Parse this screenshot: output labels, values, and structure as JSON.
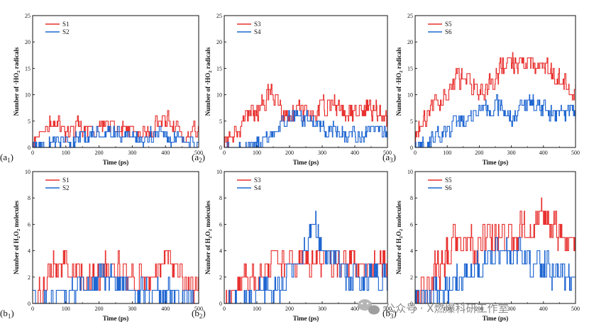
{
  "figure": {
    "watermark": "公众号 · X燃爆科研工作室"
  },
  "colors": {
    "series_a": "#e8312f",
    "series_b": "#1f66d1",
    "axis": "#111111"
  },
  "chart_data": [
    {
      "id": "a1",
      "type": "line",
      "panel_label": "(a",
      "panel_sub": "1",
      "panel_end": ")",
      "xlabel": "Time (ps)",
      "ylabel_pre": "Number of ·HO",
      "ylabel_sub": "2",
      "ylabel_post": " radicals",
      "xlim": [
        0,
        500
      ],
      "ylim": [
        0,
        25
      ],
      "xticks": [
        0,
        100,
        200,
        300,
        400,
        500
      ],
      "yticks": [
        0,
        5,
        10,
        15,
        20,
        25
      ],
      "series": [
        {
          "name": "S1",
          "color": "#e8312f",
          "seed": 11,
          "anchors": [
            [
              0,
              2
            ],
            [
              30,
              4
            ],
            [
              60,
              5
            ],
            [
              100,
              3
            ],
            [
              150,
              4
            ],
            [
              200,
              3
            ],
            [
              250,
              4
            ],
            [
              300,
              3
            ],
            [
              350,
              3
            ],
            [
              400,
              5
            ],
            [
              450,
              3
            ],
            [
              500,
              3
            ]
          ],
          "noise": 2.2,
          "ymin": 0,
          "ymax": 7
        },
        {
          "name": "S2",
          "color": "#1f66d1",
          "seed": 23,
          "anchors": [
            [
              0,
              0
            ],
            [
              50,
              1
            ],
            [
              100,
              1
            ],
            [
              150,
              2
            ],
            [
              200,
              3
            ],
            [
              250,
              3
            ],
            [
              300,
              2
            ],
            [
              350,
              2
            ],
            [
              400,
              2
            ],
            [
              450,
              1
            ],
            [
              500,
              2
            ]
          ],
          "noise": 2.0,
          "ymin": 0,
          "ymax": 6
        }
      ]
    },
    {
      "id": "a2",
      "type": "line",
      "panel_label": "(a",
      "panel_sub": "2",
      "panel_end": ")",
      "xlabel": "Time (ps)",
      "ylabel_pre": "Number of ·HO",
      "ylabel_sub": "2",
      "ylabel_post": " radicals",
      "xlim": [
        0,
        500
      ],
      "ylim": [
        0,
        25
      ],
      "xticks": [
        0,
        100,
        200,
        300,
        400,
        500
      ],
      "yticks": [
        0,
        5,
        10,
        15,
        20,
        25
      ],
      "series": [
        {
          "name": "S3",
          "color": "#e8312f",
          "seed": 31,
          "anchors": [
            [
              0,
              1
            ],
            [
              40,
              3
            ],
            [
              80,
              6
            ],
            [
              140,
              10
            ],
            [
              180,
              6
            ],
            [
              230,
              7
            ],
            [
              260,
              5
            ],
            [
              320,
              9
            ],
            [
              370,
              6
            ],
            [
              440,
              8
            ],
            [
              500,
              6
            ]
          ],
          "noise": 2.6,
          "ymin": 0,
          "ymax": 13
        },
        {
          "name": "S4",
          "color": "#1f66d1",
          "seed": 47,
          "anchors": [
            [
              0,
              0
            ],
            [
              60,
              0
            ],
            [
              100,
              1
            ],
            [
              150,
              3
            ],
            [
              180,
              5
            ],
            [
              220,
              6
            ],
            [
              260,
              5
            ],
            [
              300,
              4
            ],
            [
              350,
              3
            ],
            [
              400,
              2
            ],
            [
              450,
              3
            ],
            [
              500,
              3
            ]
          ],
          "noise": 2.0,
          "ymin": 0,
          "ymax": 9
        }
      ]
    },
    {
      "id": "a3",
      "type": "line",
      "panel_label": "(a",
      "panel_sub": "3",
      "panel_end": ")",
      "xlabel": "Time (ps)",
      "ylabel_pre": "Number of ·HO",
      "ylabel_sub": "2",
      "ylabel_post": " radicals",
      "xlim": [
        0,
        500
      ],
      "ylim": [
        0,
        25
      ],
      "xticks": [
        0,
        100,
        200,
        300,
        400,
        500
      ],
      "yticks": [
        0,
        5,
        10,
        15,
        20,
        25
      ],
      "series": [
        {
          "name": "S5",
          "color": "#e8312f",
          "seed": 53,
          "anchors": [
            [
              0,
              3
            ],
            [
              40,
              7
            ],
            [
              100,
              11
            ],
            [
              150,
              14
            ],
            [
              200,
              10
            ],
            [
              240,
              12
            ],
            [
              280,
              16
            ],
            [
              340,
              15
            ],
            [
              400,
              16
            ],
            [
              460,
              12
            ],
            [
              500,
              11
            ]
          ],
          "noise": 2.8,
          "ymin": 1,
          "ymax": 22
        },
        {
          "name": "S6",
          "color": "#1f66d1",
          "seed": 67,
          "anchors": [
            [
              0,
              1
            ],
            [
              30,
              0
            ],
            [
              70,
              2
            ],
            [
              120,
              4
            ],
            [
              160,
              5
            ],
            [
              200,
              7
            ],
            [
              260,
              8
            ],
            [
              300,
              6
            ],
            [
              360,
              9
            ],
            [
              400,
              7
            ],
            [
              450,
              6
            ],
            [
              500,
              7
            ]
          ],
          "noise": 2.2,
          "ymin": 0,
          "ymax": 11
        }
      ]
    },
    {
      "id": "b1",
      "type": "line",
      "panel_label": "(b",
      "panel_sub": "1",
      "panel_end": ")",
      "xlabel": "Time (ps)",
      "ylabel_pre": "Number of H",
      "ylabel_sub": "2",
      "ylabel_post": "O",
      "ylabel_sub2": "2",
      "ylabel_post2": " molecules",
      "xlim": [
        0,
        500
      ],
      "ylim": [
        0,
        10
      ],
      "xticks": [
        0,
        100,
        200,
        300,
        400,
        500
      ],
      "yticks": [
        0,
        2,
        4,
        6,
        8,
        10
      ],
      "series": [
        {
          "name": "S1",
          "color": "#e8312f",
          "seed": 71,
          "anchors": [
            [
              0,
              0
            ],
            [
              30,
              1
            ],
            [
              60,
              3
            ],
            [
              100,
              3
            ],
            [
              150,
              2
            ],
            [
              200,
              2
            ],
            [
              230,
              3
            ],
            [
              260,
              3
            ],
            [
              300,
              2
            ],
            [
              350,
              2
            ],
            [
              400,
              3
            ],
            [
              440,
              2
            ],
            [
              500,
              1
            ]
          ],
          "noise": 1.4,
          "ymin": 0,
          "ymax": 6
        },
        {
          "name": "S2",
          "color": "#1f66d1",
          "seed": 83,
          "anchors": [
            [
              0,
              0
            ],
            [
              60,
              0
            ],
            [
              100,
              1
            ],
            [
              150,
              1
            ],
            [
              200,
              2
            ],
            [
              250,
              2
            ],
            [
              300,
              1
            ],
            [
              350,
              1
            ],
            [
              400,
              1
            ],
            [
              450,
              0
            ],
            [
              500,
              0
            ]
          ],
          "noise": 1.3,
          "ymin": 0,
          "ymax": 5
        }
      ]
    },
    {
      "id": "b2",
      "type": "line",
      "panel_label": "(b",
      "panel_sub": "2",
      "panel_end": ")",
      "xlabel": "Time (ps)",
      "ylabel_pre": "Number of H",
      "ylabel_sub": "2",
      "ylabel_post": "O",
      "ylabel_sub2": "2",
      "ylabel_post2": " molecules",
      "xlim": [
        0,
        500
      ],
      "ylim": [
        0,
        10
      ],
      "xticks": [
        0,
        100,
        200,
        300,
        400,
        500
      ],
      "yticks": [
        0,
        2,
        4,
        6,
        8,
        10
      ],
      "series": [
        {
          "name": "S3",
          "color": "#e8312f",
          "seed": 97,
          "anchors": [
            [
              0,
              0
            ],
            [
              30,
              1
            ],
            [
              60,
              2
            ],
            [
              100,
              2
            ],
            [
              150,
              3
            ],
            [
              200,
              3
            ],
            [
              250,
              3
            ],
            [
              300,
              3
            ],
            [
              350,
              3
            ],
            [
              400,
              3
            ],
            [
              450,
              3
            ],
            [
              500,
              3
            ]
          ],
          "noise": 1.2,
          "ymin": 0,
          "ymax": 5
        },
        {
          "name": "S4",
          "color": "#1f66d1",
          "seed": 109,
          "anchors": [
            [
              0,
              0
            ],
            [
              50,
              0
            ],
            [
              90,
              1
            ],
            [
              150,
              1
            ],
            [
              200,
              2
            ],
            [
              240,
              4
            ],
            [
              270,
              6
            ],
            [
              300,
              4
            ],
            [
              340,
              3
            ],
            [
              380,
              2
            ],
            [
              420,
              2
            ],
            [
              460,
              2
            ],
            [
              500,
              2
            ]
          ],
          "noise": 1.5,
          "ymin": 0,
          "ymax": 8
        }
      ]
    },
    {
      "id": "b3",
      "type": "line",
      "panel_label": "(b",
      "panel_sub": "3",
      "panel_end": ")",
      "xlabel": "Time (ps)",
      "ylabel_pre": "Number of H",
      "ylabel_sub": "2",
      "ylabel_post": "O",
      "ylabel_sub2": "2",
      "ylabel_post2": " molecules",
      "xlim": [
        0,
        500
      ],
      "ylim": [
        0,
        10
      ],
      "xticks": [
        0,
        100,
        200,
        300,
        400,
        500
      ],
      "yticks": [
        0,
        2,
        4,
        6,
        8,
        10
      ],
      "series": [
        {
          "name": "S5",
          "color": "#e8312f",
          "seed": 113,
          "anchors": [
            [
              0,
              0
            ],
            [
              40,
              1
            ],
            [
              80,
              3
            ],
            [
              120,
              5
            ],
            [
              160,
              4
            ],
            [
              200,
              5
            ],
            [
              250,
              5
            ],
            [
              300,
              5
            ],
            [
              350,
              6
            ],
            [
              400,
              7
            ],
            [
              450,
              5
            ],
            [
              500,
              4
            ]
          ],
          "noise": 1.8,
          "ymin": 0,
          "ymax": 10
        },
        {
          "name": "S6",
          "color": "#1f66d1",
          "seed": 127,
          "anchors": [
            [
              0,
              0
            ],
            [
              60,
              1
            ],
            [
              100,
              1
            ],
            [
              150,
              2
            ],
            [
              200,
              3
            ],
            [
              250,
              4
            ],
            [
              300,
              4
            ],
            [
              350,
              3
            ],
            [
              400,
              3
            ],
            [
              450,
              2
            ],
            [
              500,
              2
            ]
          ],
          "noise": 1.6,
          "ymin": 0,
          "ymax": 7
        }
      ]
    }
  ]
}
